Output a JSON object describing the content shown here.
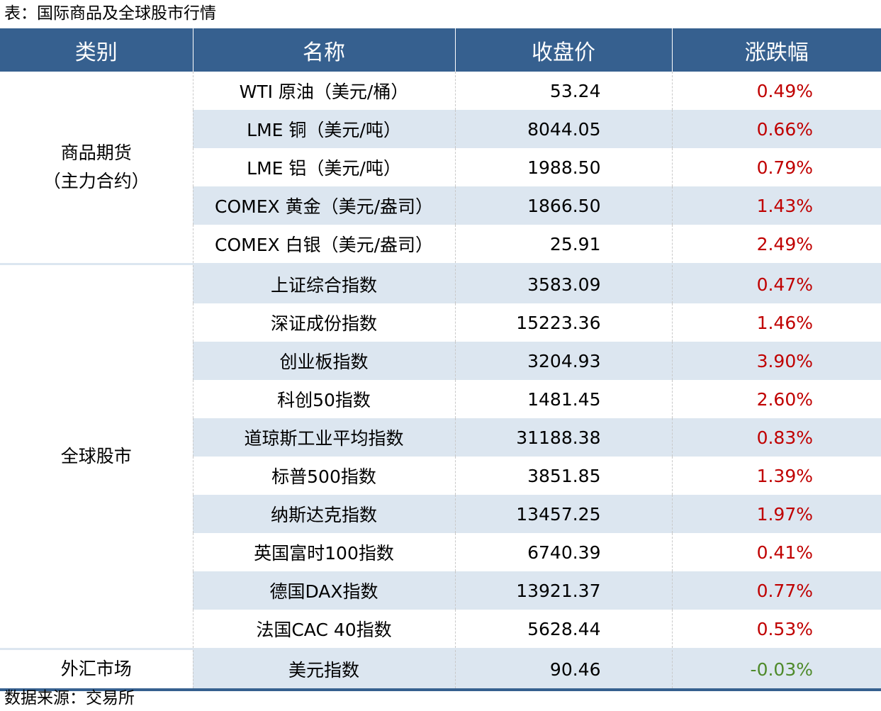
{
  "title": "表：国际商品及全球股市行情",
  "headers": [
    "类别",
    "名称",
    "收盘价",
    "涨跌幅"
  ],
  "colors": {
    "header": "#36608f",
    "stripe": "#dce6f0",
    "up": "#c00000",
    "down": "#4e8a2a"
  },
  "groups": [
    {
      "category": "商品期货\n（主力合约）",
      "rows": [
        {
          "name": "WTI 原油（美元/桶）",
          "price": "53.24",
          "change": "0.49%"
        },
        {
          "name": "LME 铜（美元/吨）",
          "price": "8044.05",
          "change": "0.66%"
        },
        {
          "name": "LME 铝（美元/吨）",
          "price": "1988.50",
          "change": "0.79%"
        },
        {
          "name": "COMEX 黄金（美元/盎司）",
          "price": "1866.50",
          "change": "1.43%"
        },
        {
          "name": "COMEX 白银（美元/盎司）",
          "price": "25.91",
          "change": "2.49%"
        }
      ]
    },
    {
      "category": "全球股市",
      "rows": [
        {
          "name": "上证综合指数",
          "price": "3583.09",
          "change": "0.47%"
        },
        {
          "name": "深证成份指数",
          "price": "15223.36",
          "change": "1.46%"
        },
        {
          "name": "创业板指数",
          "price": "3204.93",
          "change": "3.90%"
        },
        {
          "name": "科创50指数",
          "price": "1481.45",
          "change": "2.60%"
        },
        {
          "name": "道琼斯工业平均指数",
          "price": "31188.38",
          "change": "0.83%"
        },
        {
          "name": "标普500指数",
          "price": "3851.85",
          "change": "1.39%"
        },
        {
          "name": "纳斯达克指数",
          "price": "13457.25",
          "change": "1.97%"
        },
        {
          "name": "英国富时100指数",
          "price": "6740.39",
          "change": "0.41%"
        },
        {
          "name": "德国DAX指数",
          "price": "13921.37",
          "change": "0.77%"
        },
        {
          "name": "法国CAC 40指数",
          "price": "5628.44",
          "change": "0.53%"
        }
      ]
    },
    {
      "category": "外汇市场",
      "rows": [
        {
          "name": "美元指数",
          "price": "90.46",
          "change": "-0.03%"
        }
      ]
    }
  ],
  "source": "数据来源：交易所"
}
